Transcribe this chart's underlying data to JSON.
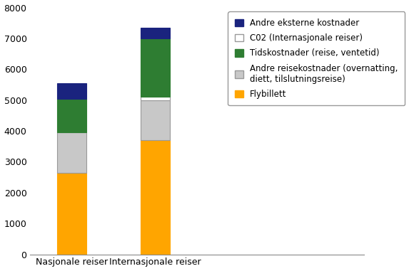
{
  "categories": [
    "Nasjonale reiser",
    "Internasjonale reiser"
  ],
  "segments": [
    {
      "label": "Flybillett",
      "values": [
        2650,
        3700
      ],
      "color": "#FFA500",
      "edgecolor": "#FFA500"
    },
    {
      "label": "Andre reisekostnader (overnatting,\ndiett, tilslutningsreise)",
      "values": [
        1300,
        1300
      ],
      "color": "#C8C8C8",
      "edgecolor": "#999999"
    },
    {
      "label": "C02 (Internasjonale reiser)",
      "values": [
        0,
        100
      ],
      "color": "#FFFFFF",
      "edgecolor": "#999999"
    },
    {
      "label": "Tidskostnader (reise, ventetid)",
      "values": [
        1100,
        1900
      ],
      "color": "#2E7D32",
      "edgecolor": "#2E7D32"
    },
    {
      "label": "Andre eksterne kostnader",
      "values": [
        500,
        350
      ],
      "color": "#1A237E",
      "edgecolor": "#1A237E"
    }
  ],
  "ylim": [
    0,
    8000
  ],
  "yticks": [
    0,
    1000,
    2000,
    3000,
    4000,
    5000,
    6000,
    7000,
    8000
  ],
  "bar_width": 0.35,
  "bar_positions": [
    0.18,
    0.52
  ],
  "legend_labels_order": [
    4,
    2,
    3,
    1,
    0
  ],
  "background_color": "#ffffff",
  "figsize": [
    5.8,
    3.81
  ],
  "dpi": 100
}
